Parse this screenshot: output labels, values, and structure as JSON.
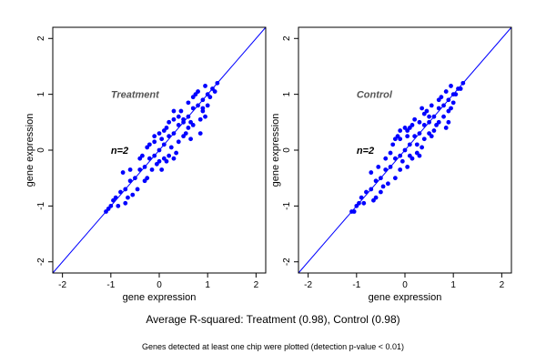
{
  "chart_data": [
    {
      "type": "scatter",
      "title": "Treatment",
      "annotation": "n=2",
      "xlabel": "gene expression",
      "ylabel": "gene expression",
      "xlim": [
        -2.2,
        2.2
      ],
      "ylim": [
        -2.2,
        2.2
      ],
      "xticks": [
        -2,
        -1,
        0,
        1,
        2
      ],
      "yticks": [
        -2,
        -1,
        0,
        1,
        2
      ],
      "reference_line": "y = x",
      "point_color": "#0000ff",
      "line_color": "#0000ff",
      "points": [
        [
          -1.1,
          -1.1
        ],
        [
          -1.0,
          -1.0
        ],
        [
          -0.9,
          -0.85
        ],
        [
          -0.8,
          -0.75
        ],
        [
          -0.7,
          -0.7
        ],
        [
          -0.6,
          -0.55
        ],
        [
          -0.5,
          -0.5
        ],
        [
          -0.4,
          -0.35
        ],
        [
          -0.3,
          -0.3
        ],
        [
          -0.2,
          -0.15
        ],
        [
          -0.1,
          -0.1
        ],
        [
          0.0,
          0.0
        ],
        [
          0.1,
          0.1
        ],
        [
          0.2,
          0.25
        ],
        [
          0.3,
          0.3
        ],
        [
          0.4,
          0.45
        ],
        [
          0.5,
          0.5
        ],
        [
          0.6,
          0.6
        ],
        [
          0.7,
          0.75
        ],
        [
          0.8,
          0.8
        ],
        [
          0.9,
          0.9
        ],
        [
          1.0,
          1.0
        ],
        [
          1.1,
          1.1
        ],
        [
          1.2,
          1.2
        ],
        [
          -0.1,
          0.15
        ],
        [
          0.15,
          -0.2
        ],
        [
          0.5,
          0.55
        ],
        [
          -0.3,
          -0.55
        ],
        [
          0.4,
          0.6
        ],
        [
          0.3,
          -0.15
        ],
        [
          0.85,
          0.55
        ],
        [
          0.95,
          0.6
        ],
        [
          0.6,
          0.85
        ],
        [
          -0.75,
          -0.4
        ],
        [
          -0.1,
          0.25
        ],
        [
          0.2,
          -0.1
        ],
        [
          0.05,
          -0.35
        ],
        [
          -0.55,
          -0.8
        ],
        [
          0.6,
          0.4
        ],
        [
          0.7,
          0.45
        ],
        [
          0.75,
          1.0
        ],
        [
          0.35,
          -0.05
        ],
        [
          0.9,
          0.7
        ],
        [
          1.05,
          0.95
        ],
        [
          -0.65,
          -0.85
        ],
        [
          -0.2,
          0.1
        ],
        [
          -0.4,
          -0.15
        ],
        [
          -0.45,
          -0.7
        ],
        [
          0.1,
          0.35
        ],
        [
          0.5,
          0.25
        ],
        [
          0.3,
          0.55
        ],
        [
          -0.05,
          -0.25
        ],
        [
          0.05,
          0.2
        ],
        [
          0.25,
          0.05
        ],
        [
          -0.25,
          -0.5
        ],
        [
          0.65,
          0.5
        ],
        [
          0.8,
          1.05
        ],
        [
          1.15,
          1.05
        ],
        [
          -0.95,
          -0.9
        ],
        [
          -0.85,
          -1.0
        ],
        [
          0.45,
          0.7
        ],
        [
          0.55,
          0.3
        ],
        [
          0.15,
          0.4
        ],
        [
          -0.35,
          -0.1
        ],
        [
          -0.15,
          -0.35
        ],
        [
          0.0,
          -0.2
        ],
        [
          0.2,
          0.5
        ],
        [
          0.4,
          0.15
        ],
        [
          0.7,
          0.95
        ],
        [
          0.9,
          0.75
        ],
        [
          -0.6,
          -0.35
        ],
        [
          -0.7,
          -0.95
        ],
        [
          0.3,
          0.7
        ],
        [
          0.65,
          0.2
        ],
        [
          -0.25,
          0.05
        ],
        [
          0.0,
          0.3
        ],
        [
          0.1,
          -0.15
        ],
        [
          1.0,
          0.8
        ],
        [
          0.95,
          1.15
        ],
        [
          -1.05,
          -1.05
        ],
        [
          0.85,
          0.3
        ]
      ]
    },
    {
      "type": "scatter",
      "title": "Control",
      "annotation": "n=2",
      "xlabel": "gene expression",
      "ylabel": "gene expression",
      "xlim": [
        -2.2,
        2.2
      ],
      "ylim": [
        -2.2,
        2.2
      ],
      "xticks": [
        -2,
        -1,
        0,
        1,
        2
      ],
      "yticks": [
        -2,
        -1,
        0,
        1,
        2
      ],
      "reference_line": "y = x",
      "point_color": "#0000ff",
      "line_color": "#0000ff",
      "points": [
        [
          -1.1,
          -1.1
        ],
        [
          -1.0,
          -1.0
        ],
        [
          -0.9,
          -0.85
        ],
        [
          -0.8,
          -0.75
        ],
        [
          -0.7,
          -0.7
        ],
        [
          -0.6,
          -0.55
        ],
        [
          -0.5,
          -0.5
        ],
        [
          -0.4,
          -0.35
        ],
        [
          -0.3,
          -0.3
        ],
        [
          -0.2,
          -0.15
        ],
        [
          -0.1,
          -0.1
        ],
        [
          0.0,
          0.0
        ],
        [
          0.1,
          0.1
        ],
        [
          0.2,
          0.25
        ],
        [
          0.3,
          0.3
        ],
        [
          0.4,
          0.45
        ],
        [
          0.5,
          0.5
        ],
        [
          0.6,
          0.6
        ],
        [
          0.7,
          0.75
        ],
        [
          0.8,
          0.8
        ],
        [
          0.9,
          0.9
        ],
        [
          1.0,
          1.0
        ],
        [
          1.1,
          1.1
        ],
        [
          1.2,
          1.2
        ],
        [
          -0.1,
          0.2
        ],
        [
          0.15,
          -0.15
        ],
        [
          0.5,
          0.6
        ],
        [
          -0.35,
          -0.6
        ],
        [
          0.4,
          0.65
        ],
        [
          0.3,
          -0.1
        ],
        [
          0.8,
          0.6
        ],
        [
          0.9,
          0.5
        ],
        [
          0.55,
          0.8
        ],
        [
          -0.7,
          -0.4
        ],
        [
          -0.15,
          0.25
        ],
        [
          0.25,
          -0.05
        ],
        [
          0.05,
          -0.3
        ],
        [
          -0.5,
          -0.75
        ],
        [
          0.6,
          0.35
        ],
        [
          0.7,
          0.5
        ],
        [
          0.75,
          0.95
        ],
        [
          0.35,
          0.05
        ],
        [
          0.95,
          0.75
        ],
        [
          1.05,
          1.0
        ],
        [
          -0.6,
          -0.85
        ],
        [
          -0.25,
          0.1
        ],
        [
          -0.4,
          -0.15
        ],
        [
          -0.45,
          -0.65
        ],
        [
          0.1,
          0.4
        ],
        [
          0.5,
          0.3
        ],
        [
          0.3,
          0.5
        ],
        [
          -0.05,
          -0.2
        ],
        [
          0.05,
          0.25
        ],
        [
          0.25,
          0.1
        ],
        [
          -0.2,
          -0.5
        ],
        [
          0.65,
          0.45
        ],
        [
          0.85,
          1.05
        ],
        [
          1.15,
          1.1
        ],
        [
          -0.95,
          -0.95
        ],
        [
          -0.85,
          -0.95
        ],
        [
          0.45,
          0.7
        ],
        [
          0.55,
          0.25
        ],
        [
          0.15,
          0.45
        ],
        [
          -0.3,
          -0.05
        ],
        [
          -0.1,
          -0.35
        ],
        [
          0.0,
          0.4
        ],
        [
          0.2,
          0.55
        ],
        [
          0.4,
          0.2
        ],
        [
          0.7,
          0.9
        ],
        [
          0.9,
          0.7
        ],
        [
          -0.55,
          -0.3
        ],
        [
          -0.65,
          -0.9
        ],
        [
          0.35,
          0.75
        ],
        [
          -0.2,
          0.2
        ],
        [
          0.05,
          0.35
        ],
        [
          0.1,
          -0.1
        ],
        [
          1.0,
          0.85
        ],
        [
          0.95,
          1.15
        ],
        [
          -1.05,
          -1.1
        ],
        [
          0.85,
          0.4
        ],
        [
          -0.1,
          0.35
        ]
      ]
    }
  ],
  "captions": {
    "summary": "Average R-squared: Treatment (0.98), Control (0.98)",
    "footnote": "Genes detected at least one chip were plotted (detection p-value < 0.01)"
  }
}
